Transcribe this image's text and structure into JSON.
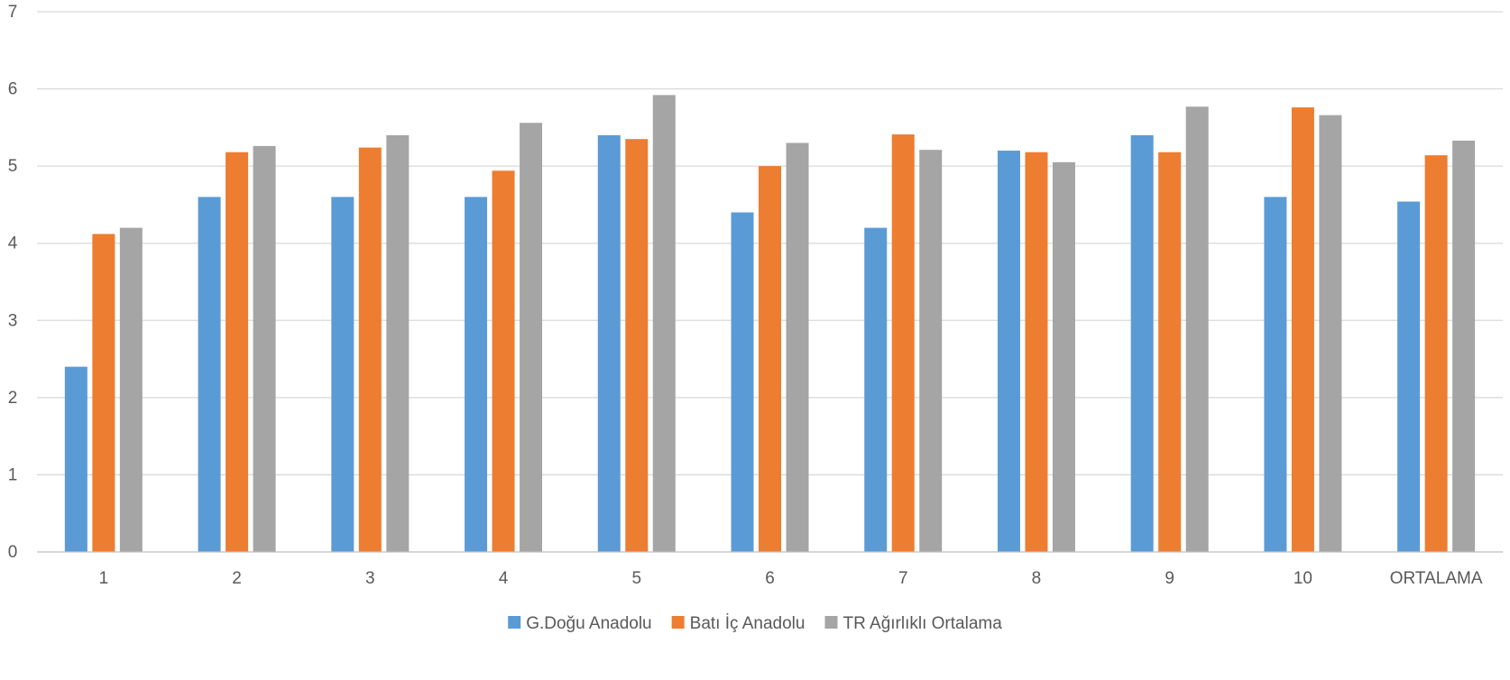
{
  "chart_data": {
    "type": "bar",
    "title": "",
    "xlabel": "",
    "ylabel": "",
    "categories": [
      "1",
      "2",
      "3",
      "4",
      "5",
      "6",
      "7",
      "8",
      "9",
      "10",
      "ORTALAMA"
    ],
    "series": [
      {
        "name": "G.Doğu Anadolu",
        "color": "#5b9bd5",
        "values": [
          2.4,
          4.6,
          4.6,
          4.6,
          5.4,
          4.4,
          4.2,
          5.2,
          5.4,
          4.6,
          4.54
        ]
      },
      {
        "name": "Batı İç Anadolu",
        "color": "#ed7d31",
        "values": [
          4.12,
          5.18,
          5.24,
          4.94,
          5.35,
          5.0,
          5.41,
          5.18,
          5.18,
          5.76,
          5.14
        ]
      },
      {
        "name": "TR Ağırlıklı Ortalama",
        "color": "#a5a5a5",
        "values": [
          4.2,
          5.26,
          5.4,
          5.56,
          5.92,
          5.3,
          5.21,
          5.05,
          5.77,
          5.66,
          5.33
        ]
      }
    ],
    "ylim": [
      0,
      7
    ],
    "yticks": [
      0,
      1,
      2,
      3,
      4,
      5,
      6,
      7
    ],
    "grid": true,
    "legend_position": "bottom-center",
    "gridline_color": "#d9d9d9",
    "axis_color": "#bfbfbf",
    "label_color": "#595959"
  }
}
